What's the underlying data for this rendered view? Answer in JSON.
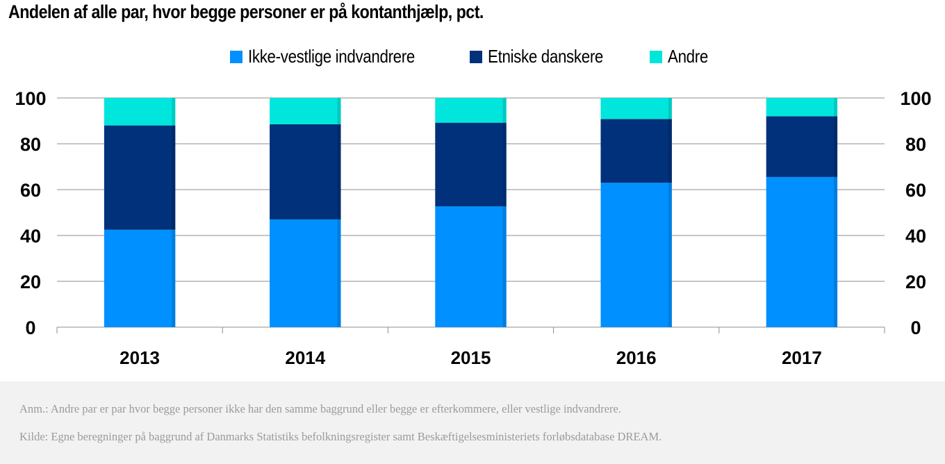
{
  "chart_data": {
    "type": "bar",
    "stacked": true,
    "title": "Andelen af alle par, hvor begge personer er på kontanthjælp, pct.",
    "categories": [
      "2013",
      "2014",
      "2015",
      "2016",
      "2017"
    ],
    "series": [
      {
        "name": "Ikke-vestlige indvandrere",
        "color": "#0090ff",
        "values": [
          42.5,
          47,
          52.7,
          63,
          65.5
        ]
      },
      {
        "name": "Etniske danskere",
        "color": "#00317a",
        "values": [
          45.5,
          41.5,
          36.5,
          27.8,
          26.5
        ]
      },
      {
        "name": "Andre",
        "color": "#00e6dc",
        "values": [
          12,
          11.5,
          10.8,
          9.2,
          8
        ]
      }
    ],
    "ylim": [
      0,
      100
    ],
    "yticks": [
      "0",
      "20",
      "40",
      "60",
      "80",
      "100"
    ],
    "grid": true,
    "legend": "top-center",
    "secondary_y_axis": true
  },
  "footer": {
    "note": "Anm.: Andre par er par hvor begge personer ikke har den samme baggrund eller begge er efterkommere, eller vestlige indvandrere.",
    "source": "Kilde: Egne beregninger på baggrund af Danmarks Statistiks befolkningsregister samt Beskæftigelsesministeriets forløbsdatabase DREAM."
  }
}
